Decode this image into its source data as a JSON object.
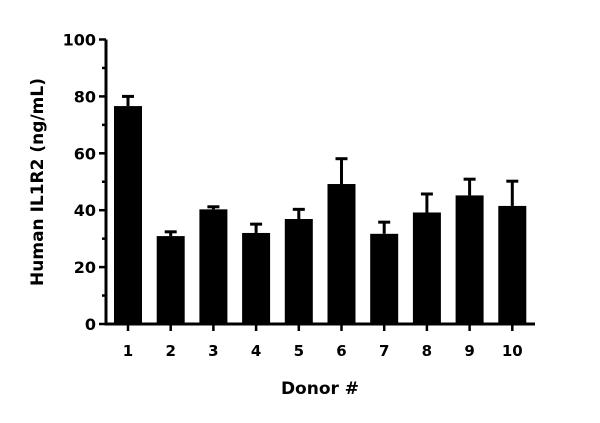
{
  "chart_data": {
    "type": "bar",
    "title": "",
    "xlabel": "Donor #",
    "ylabel": "Human IL1R2 (ng/mL)",
    "ylim": [
      0,
      100
    ],
    "yticks": [
      0,
      20,
      40,
      60,
      80,
      100
    ],
    "categories": [
      "1",
      "2",
      "3",
      "4",
      "5",
      "6",
      "7",
      "8",
      "9",
      "10"
    ],
    "values": [
      76.6,
      30.9,
      40.3,
      32.0,
      36.9,
      49.2,
      31.7,
      39.2,
      45.2,
      41.5
    ],
    "error_upper": [
      80.0,
      32.4,
      41.2,
      35.1,
      40.3,
      58.1,
      35.8,
      45.7,
      50.9,
      50.2
    ],
    "bar_color": "#000000",
    "grid": false,
    "legend": "none"
  }
}
